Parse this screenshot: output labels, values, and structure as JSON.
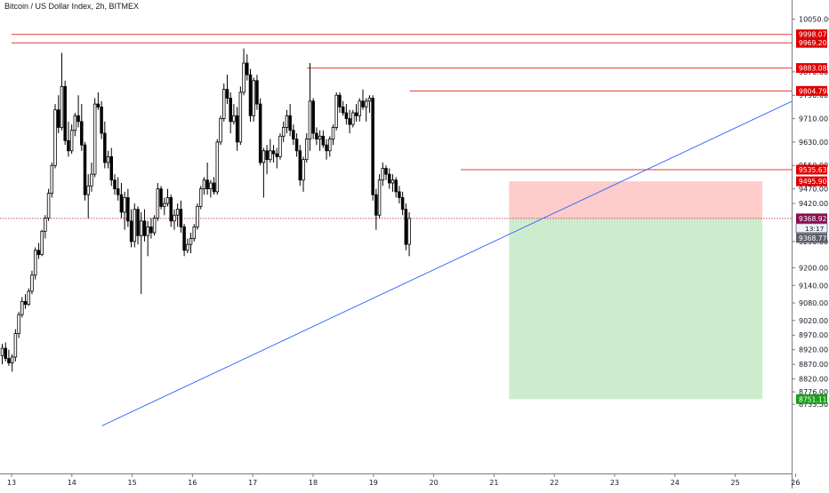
{
  "chart_data": {
    "type": "candlestick",
    "title": "Bitcoin / US Dollar Index, 2h, BITMEX",
    "x_tick_labels": [
      "13",
      "14",
      "15",
      "16",
      "17",
      "18",
      "19",
      "20",
      "21",
      "22",
      "23",
      "24",
      "25",
      "26"
    ],
    "y_tick_labels": [
      10050,
      9870,
      9790,
      9710,
      9630,
      9550,
      9470,
      9420,
      9290,
      9200,
      9140,
      9080,
      9020,
      8970,
      8920,
      8870,
      8820,
      8776,
      8733.5
    ],
    "y_tick_text": [
      "10050.00",
      "9870.00",
      "9790.00",
      "9710.00",
      "9630.00",
      "9550.00",
      "9470.00",
      "9420.00",
      "9290.00",
      "9200.00",
      "9140.00",
      "9080.00",
      "9020.00",
      "8970.00",
      "8920.00",
      "8870.00",
      "8820.00",
      "8776.00",
      "8733.50"
    ],
    "horizontal_levels": [
      {
        "price": 9998.07,
        "label": "9998.07",
        "start_day": 13.0
      },
      {
        "price": 9969.2,
        "label": "9969.20",
        "start_day": 13.0
      },
      {
        "price": 9883.08,
        "label": "9883.08",
        "start_day": 17.9
      },
      {
        "price": 9804.79,
        "label": "9804.79",
        "start_day": 19.6
      },
      {
        "price": 9535.63,
        "label": "9535.63",
        "start_day": 20.45
      }
    ],
    "position": {
      "entry": 9368.92,
      "stop": 9495.9,
      "target": 8751.11,
      "start_day": 21.25,
      "end_day": 25.45,
      "entry_label": "9368.92",
      "stop_label": "9495.90",
      "target_label": "8751.11"
    },
    "current": {
      "price": 9368.77,
      "label": "9368.77",
      "countdown": "13:17"
    },
    "trendline": {
      "from": {
        "day": 14.5,
        "price": 8660
      },
      "to": {
        "day": 26.05,
        "price": 9780
      }
    },
    "candles": [
      {
        "o": 8900,
        "h": 8940,
        "l": 8870,
        "c": 8925
      },
      {
        "o": 8925,
        "h": 8945,
        "l": 8880,
        "c": 8890
      },
      {
        "o": 8890,
        "h": 8920,
        "l": 8865,
        "c": 8875
      },
      {
        "o": 8875,
        "h": 8905,
        "l": 8845,
        "c": 8895
      },
      {
        "o": 8895,
        "h": 8990,
        "l": 8880,
        "c": 8975
      },
      {
        "o": 8975,
        "h": 9050,
        "l": 8960,
        "c": 9040
      },
      {
        "o": 9040,
        "h": 9100,
        "l": 9030,
        "c": 9085
      },
      {
        "o": 9085,
        "h": 9110,
        "l": 9060,
        "c": 9075
      },
      {
        "o": 9075,
        "h": 9130,
        "l": 9070,
        "c": 9120
      },
      {
        "o": 9120,
        "h": 9190,
        "l": 9110,
        "c": 9175
      },
      {
        "o": 9175,
        "h": 9270,
        "l": 9160,
        "c": 9260
      },
      {
        "o": 9260,
        "h": 9285,
        "l": 9230,
        "c": 9245
      },
      {
        "o": 9245,
        "h": 9330,
        "l": 9240,
        "c": 9325
      },
      {
        "o": 9325,
        "h": 9380,
        "l": 9300,
        "c": 9370
      },
      {
        "o": 9370,
        "h": 9470,
        "l": 9360,
        "c": 9455
      },
      {
        "o": 9455,
        "h": 9560,
        "l": 9440,
        "c": 9550
      },
      {
        "o": 9550,
        "h": 9760,
        "l": 9540,
        "c": 9740
      },
      {
        "o": 9740,
        "h": 9790,
        "l": 9660,
        "c": 9680
      },
      {
        "o": 9680,
        "h": 9935,
        "l": 9670,
        "c": 9820
      },
      {
        "o": 9820,
        "h": 9840,
        "l": 9620,
        "c": 9635
      },
      {
        "o": 9635,
        "h": 9700,
        "l": 9580,
        "c": 9600
      },
      {
        "o": 9600,
        "h": 9690,
        "l": 9590,
        "c": 9670
      },
      {
        "o": 9670,
        "h": 9730,
        "l": 9650,
        "c": 9720
      },
      {
        "o": 9720,
        "h": 9790,
        "l": 9680,
        "c": 9700
      },
      {
        "o": 9700,
        "h": 9760,
        "l": 9600,
        "c": 9620
      },
      {
        "o": 9620,
        "h": 9630,
        "l": 9430,
        "c": 9450
      },
      {
        "o": 9450,
        "h": 9520,
        "l": 9370,
        "c": 9480
      },
      {
        "o": 9480,
        "h": 9560,
        "l": 9460,
        "c": 9520
      },
      {
        "o": 9520,
        "h": 9780,
        "l": 9510,
        "c": 9760
      },
      {
        "o": 9760,
        "h": 9800,
        "l": 9740,
        "c": 9750
      },
      {
        "o": 9750,
        "h": 9770,
        "l": 9640,
        "c": 9660
      },
      {
        "o": 9660,
        "h": 9700,
        "l": 9540,
        "c": 9560
      },
      {
        "o": 9560,
        "h": 9600,
        "l": 9540,
        "c": 9580
      },
      {
        "o": 9580,
        "h": 9610,
        "l": 9480,
        "c": 9500
      },
      {
        "o": 9500,
        "h": 9520,
        "l": 9450,
        "c": 9470
      },
      {
        "o": 9470,
        "h": 9510,
        "l": 9430,
        "c": 9450
      },
      {
        "o": 9450,
        "h": 9490,
        "l": 9370,
        "c": 9390
      },
      {
        "o": 9390,
        "h": 9460,
        "l": 9330,
        "c": 9440
      },
      {
        "o": 9440,
        "h": 9470,
        "l": 9340,
        "c": 9360
      },
      {
        "o": 9360,
        "h": 9400,
        "l": 9270,
        "c": 9290
      },
      {
        "o": 9290,
        "h": 9420,
        "l": 9270,
        "c": 9400
      },
      {
        "o": 9400,
        "h": 9410,
        "l": 9280,
        "c": 9310
      },
      {
        "o": 9310,
        "h": 9390,
        "l": 9110,
        "c": 9360
      },
      {
        "o": 9360,
        "h": 9400,
        "l": 9290,
        "c": 9310
      },
      {
        "o": 9310,
        "h": 9360,
        "l": 9240,
        "c": 9340
      },
      {
        "o": 9340,
        "h": 9370,
        "l": 9300,
        "c": 9320
      },
      {
        "o": 9320,
        "h": 9380,
        "l": 9310,
        "c": 9370
      },
      {
        "o": 9370,
        "h": 9490,
        "l": 9360,
        "c": 9470
      },
      {
        "o": 9470,
        "h": 9480,
        "l": 9400,
        "c": 9410
      },
      {
        "o": 9410,
        "h": 9440,
        "l": 9380,
        "c": 9420
      },
      {
        "o": 9420,
        "h": 9470,
        "l": 9410,
        "c": 9440
      },
      {
        "o": 9440,
        "h": 9450,
        "l": 9340,
        "c": 9360
      },
      {
        "o": 9360,
        "h": 9400,
        "l": 9330,
        "c": 9380
      },
      {
        "o": 9380,
        "h": 9420,
        "l": 9340,
        "c": 9400
      },
      {
        "o": 9400,
        "h": 9430,
        "l": 9320,
        "c": 9340
      },
      {
        "o": 9340,
        "h": 9350,
        "l": 9240,
        "c": 9260
      },
      {
        "o": 9260,
        "h": 9300,
        "l": 9250,
        "c": 9280
      },
      {
        "o": 9280,
        "h": 9320,
        "l": 9250,
        "c": 9300
      },
      {
        "o": 9300,
        "h": 9350,
        "l": 9290,
        "c": 9340
      },
      {
        "o": 9340,
        "h": 9420,
        "l": 9330,
        "c": 9410
      },
      {
        "o": 9410,
        "h": 9480,
        "l": 9400,
        "c": 9470
      },
      {
        "o": 9470,
        "h": 9510,
        "l": 9450,
        "c": 9500
      },
      {
        "o": 9500,
        "h": 9560,
        "l": 9450,
        "c": 9470
      },
      {
        "o": 9470,
        "h": 9500,
        "l": 9440,
        "c": 9490
      },
      {
        "o": 9490,
        "h": 9510,
        "l": 9450,
        "c": 9460
      },
      {
        "o": 9460,
        "h": 9640,
        "l": 9450,
        "c": 9630
      },
      {
        "o": 9630,
        "h": 9720,
        "l": 9620,
        "c": 9710
      },
      {
        "o": 9710,
        "h": 9830,
        "l": 9700,
        "c": 9810
      },
      {
        "o": 9810,
        "h": 9860,
        "l": 9760,
        "c": 9780
      },
      {
        "o": 9780,
        "h": 9800,
        "l": 9660,
        "c": 9700
      },
      {
        "o": 9700,
        "h": 9760,
        "l": 9690,
        "c": 9720
      },
      {
        "o": 9720,
        "h": 9750,
        "l": 9600,
        "c": 9630
      },
      {
        "o": 9630,
        "h": 9820,
        "l": 9620,
        "c": 9800
      },
      {
        "o": 9800,
        "h": 9950,
        "l": 9790,
        "c": 9900
      },
      {
        "o": 9900,
        "h": 9930,
        "l": 9840,
        "c": 9860
      },
      {
        "o": 9860,
        "h": 9880,
        "l": 9700,
        "c": 9720
      },
      {
        "o": 9720,
        "h": 9850,
        "l": 9700,
        "c": 9840
      },
      {
        "o": 9840,
        "h": 9860,
        "l": 9740,
        "c": 9760
      },
      {
        "o": 9760,
        "h": 9780,
        "l": 9550,
        "c": 9560
      },
      {
        "o": 9560,
        "h": 9610,
        "l": 9440,
        "c": 9600
      },
      {
        "o": 9600,
        "h": 9620,
        "l": 9520,
        "c": 9570
      },
      {
        "o": 9570,
        "h": 9640,
        "l": 9560,
        "c": 9600
      },
      {
        "o": 9600,
        "h": 9620,
        "l": 9560,
        "c": 9590
      },
      {
        "o": 9590,
        "h": 9610,
        "l": 9540,
        "c": 9580
      },
      {
        "o": 9580,
        "h": 9660,
        "l": 9570,
        "c": 9650
      },
      {
        "o": 9650,
        "h": 9700,
        "l": 9630,
        "c": 9680
      },
      {
        "o": 9680,
        "h": 9740,
        "l": 9660,
        "c": 9720
      },
      {
        "o": 9720,
        "h": 9760,
        "l": 9650,
        "c": 9670
      },
      {
        "o": 9670,
        "h": 9690,
        "l": 9620,
        "c": 9640
      },
      {
        "o": 9640,
        "h": 9660,
        "l": 9580,
        "c": 9600
      },
      {
        "o": 9600,
        "h": 9620,
        "l": 9480,
        "c": 9500
      },
      {
        "o": 9500,
        "h": 9580,
        "l": 9460,
        "c": 9570
      },
      {
        "o": 9570,
        "h": 9660,
        "l": 9560,
        "c": 9640
      },
      {
        "o": 9640,
        "h": 9900,
        "l": 9600,
        "c": 9770
      },
      {
        "o": 9770,
        "h": 9780,
        "l": 9640,
        "c": 9660
      },
      {
        "o": 9660,
        "h": 9680,
        "l": 9620,
        "c": 9640
      },
      {
        "o": 9640,
        "h": 9670,
        "l": 9600,
        "c": 9650
      },
      {
        "o": 9650,
        "h": 9670,
        "l": 9610,
        "c": 9620
      },
      {
        "o": 9620,
        "h": 9640,
        "l": 9570,
        "c": 9600
      },
      {
        "o": 9600,
        "h": 9650,
        "l": 9580,
        "c": 9640
      },
      {
        "o": 9640,
        "h": 9690,
        "l": 9620,
        "c": 9680
      },
      {
        "o": 9680,
        "h": 9800,
        "l": 9670,
        "c": 9790
      },
      {
        "o": 9790,
        "h": 9800,
        "l": 9730,
        "c": 9750
      },
      {
        "o": 9750,
        "h": 9770,
        "l": 9720,
        "c": 9730
      },
      {
        "o": 9730,
        "h": 9760,
        "l": 9690,
        "c": 9710
      },
      {
        "o": 9710,
        "h": 9740,
        "l": 9660,
        "c": 9690
      },
      {
        "o": 9690,
        "h": 9740,
        "l": 9680,
        "c": 9730
      },
      {
        "o": 9730,
        "h": 9760,
        "l": 9700,
        "c": 9720
      },
      {
        "o": 9720,
        "h": 9780,
        "l": 9700,
        "c": 9770
      },
      {
        "o": 9770,
        "h": 9810,
        "l": 9740,
        "c": 9750
      },
      {
        "o": 9750,
        "h": 9780,
        "l": 9700,
        "c": 9770
      },
      {
        "o": 9770,
        "h": 9790,
        "l": 9730,
        "c": 9780
      },
      {
        "o": 9780,
        "h": 9790,
        "l": 9430,
        "c": 9450
      },
      {
        "o": 9450,
        "h": 9470,
        "l": 9330,
        "c": 9380
      },
      {
        "o": 9380,
        "h": 9520,
        "l": 9370,
        "c": 9500
      },
      {
        "o": 9500,
        "h": 9560,
        "l": 9480,
        "c": 9540
      },
      {
        "o": 9540,
        "h": 9550,
        "l": 9500,
        "c": 9520
      },
      {
        "o": 9520,
        "h": 9540,
        "l": 9470,
        "c": 9490
      },
      {
        "o": 9490,
        "h": 9520,
        "l": 9460,
        "c": 9500
      },
      {
        "o": 9500,
        "h": 9510,
        "l": 9440,
        "c": 9460
      },
      {
        "o": 9460,
        "h": 9480,
        "l": 9420,
        "c": 9440
      },
      {
        "o": 9440,
        "h": 9460,
        "l": 9380,
        "c": 9400
      },
      {
        "o": 9400,
        "h": 9420,
        "l": 9260,
        "c": 9280
      },
      {
        "o": 9280,
        "h": 9390,
        "l": 9240,
        "c": 9369
      }
    ]
  }
}
